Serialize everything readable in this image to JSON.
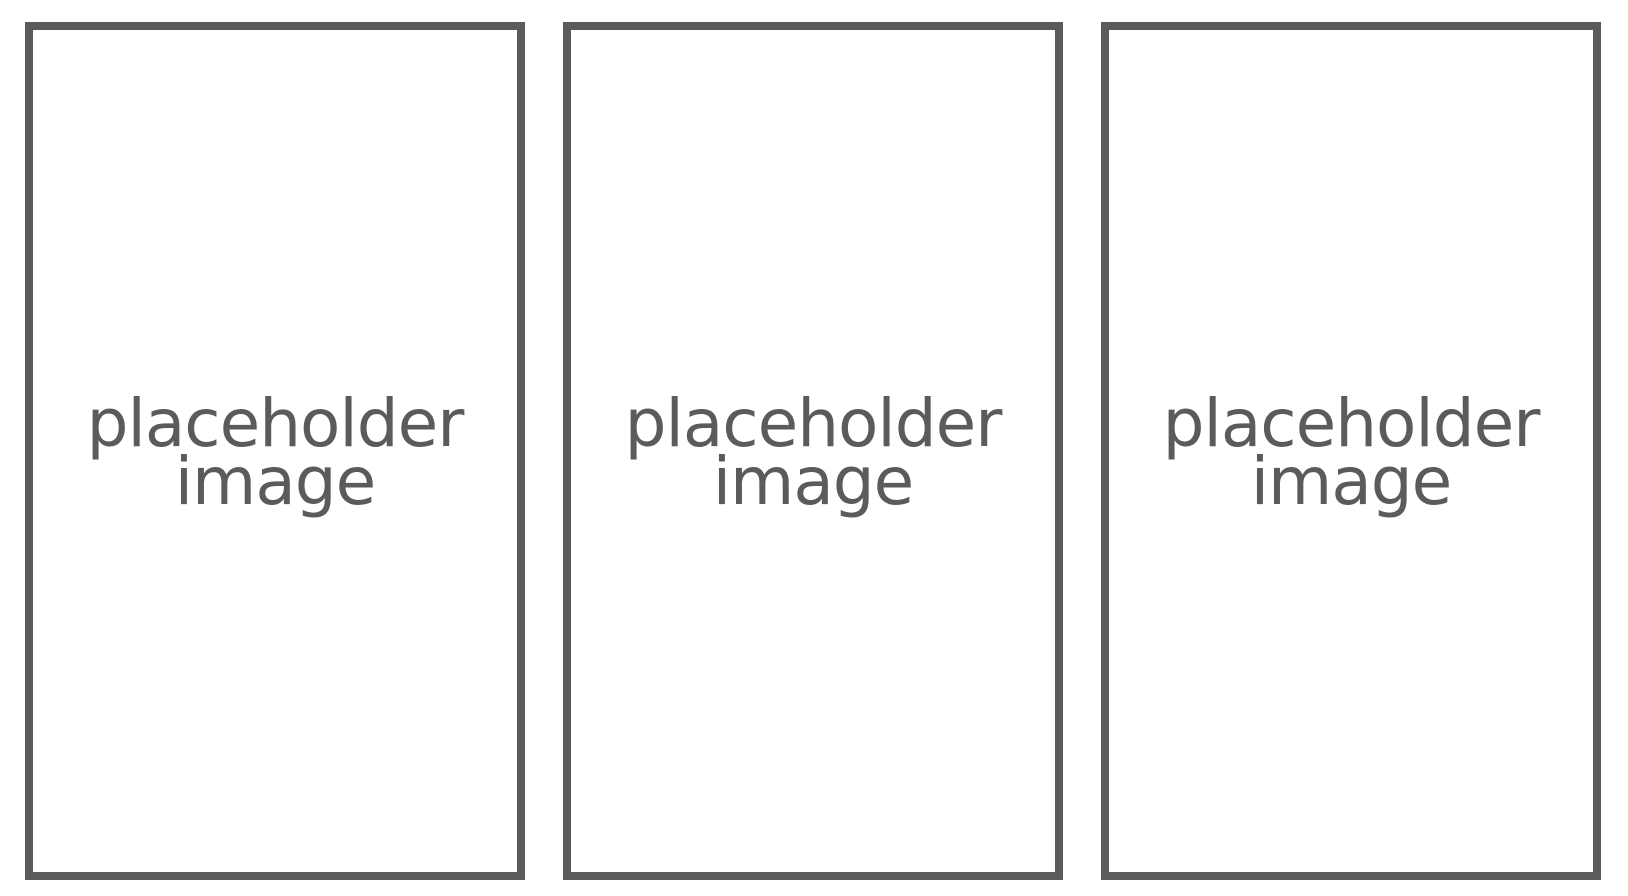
{
  "gallery": {
    "border_color": "#5b5b5b",
    "text_color": "#5b5b5b",
    "background_color": "#ffffff",
    "items": [
      {
        "line1": "placeholder",
        "line2": "image"
      },
      {
        "line1": "placeholder",
        "line2": "image"
      },
      {
        "line1": "placeholder",
        "line2": "image"
      }
    ]
  }
}
